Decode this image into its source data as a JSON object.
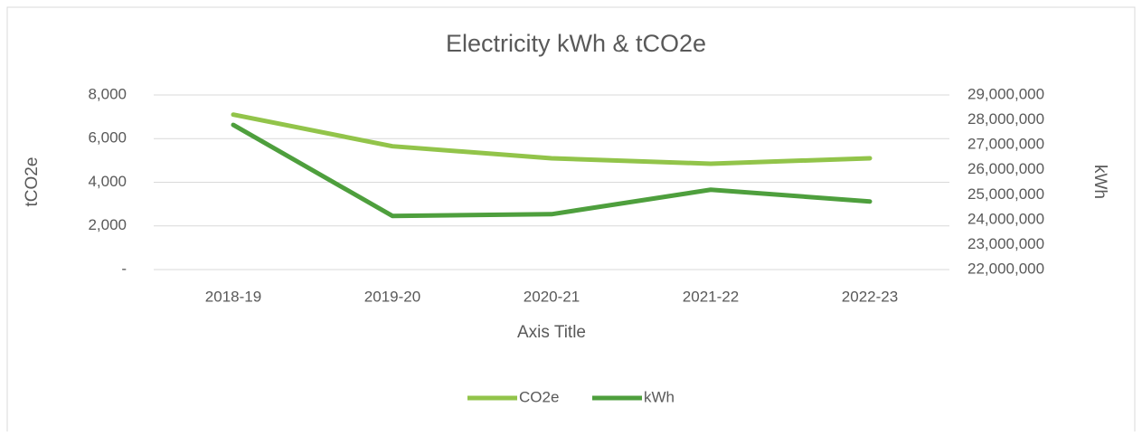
{
  "chart_data": {
    "type": "line",
    "title": "Electricity kWh & tCO2e",
    "x_label": "Axis Title",
    "y_label": "tCO2e",
    "y2_label": "kWh",
    "categories": [
      "2018-19",
      "2019-20",
      "2020-21",
      "2021-22",
      "2022-23"
    ],
    "series": [
      {
        "name": "CO2e",
        "color": "#92c44a",
        "values": [
          7100,
          5650,
          5100,
          4850,
          5100
        ]
      },
      {
        "name": "kWh",
        "color": "#4e9f3d",
        "axis": "y2",
        "values": [
          27800000,
          24150000,
          24220000,
          25200000,
          24730000
        ]
      }
    ],
    "ylim": [
      0,
      8000
    ],
    "yticks": [
      {
        "value": 0,
        "label": "-"
      },
      {
        "value": 2000,
        "label": "2,000"
      },
      {
        "value": 4000,
        "label": "4,000"
      },
      {
        "value": 6000,
        "label": "6,000"
      },
      {
        "value": 8000,
        "label": "8,000"
      }
    ],
    "y2lim": [
      22000000,
      29000000
    ],
    "y2ticks": [
      {
        "value": 22000000,
        "label": "22,000,000"
      },
      {
        "value": 23000000,
        "label": "23,000,000"
      },
      {
        "value": 24000000,
        "label": "24,000,000"
      },
      {
        "value": 25000000,
        "label": "25,000,000"
      },
      {
        "value": 26000000,
        "label": "26,000,000"
      },
      {
        "value": 27000000,
        "label": "27,000,000"
      },
      {
        "value": 28000000,
        "label": "28,000,000"
      },
      {
        "value": 29000000,
        "label": "29,000,000"
      }
    ],
    "grid": true,
    "legend": "bottom"
  }
}
